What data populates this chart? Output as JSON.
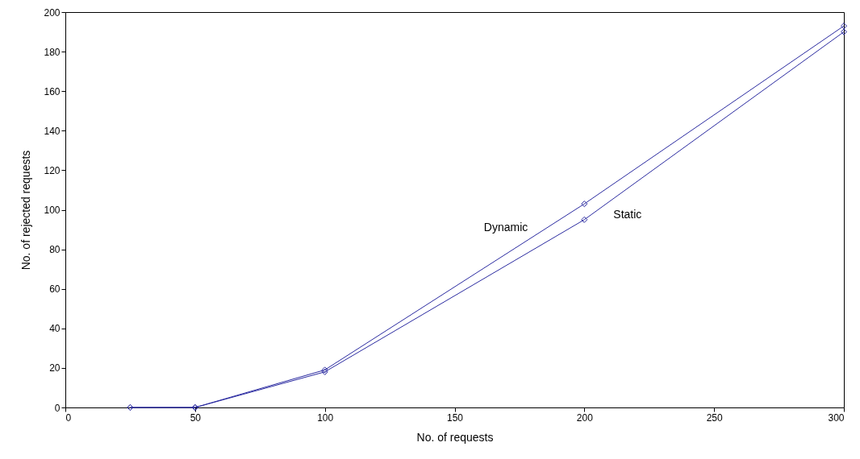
{
  "chart_data": {
    "type": "line",
    "xlabel": "No. of requests",
    "ylabel": "No. of rejected requests",
    "x": [
      25,
      50,
      100,
      200,
      300
    ],
    "series": [
      {
        "name": "Dynamic",
        "color": "#2a2aa0",
        "values": [
          0,
          0,
          19,
          103,
          193
        ]
      },
      {
        "name": "Static",
        "color": "#2a2aa0",
        "values": [
          0,
          0,
          18,
          95,
          190
        ]
      }
    ],
    "xlim": [
      0,
      300
    ],
    "xticks": [
      0,
      50,
      100,
      150,
      200,
      250,
      300
    ],
    "ylim": [
      0,
      200
    ],
    "yticks": [
      0,
      20,
      40,
      60,
      80,
      100,
      120,
      140,
      160,
      180,
      200
    ],
    "grid": false,
    "marker": "diamond",
    "line_style": "solid"
  }
}
